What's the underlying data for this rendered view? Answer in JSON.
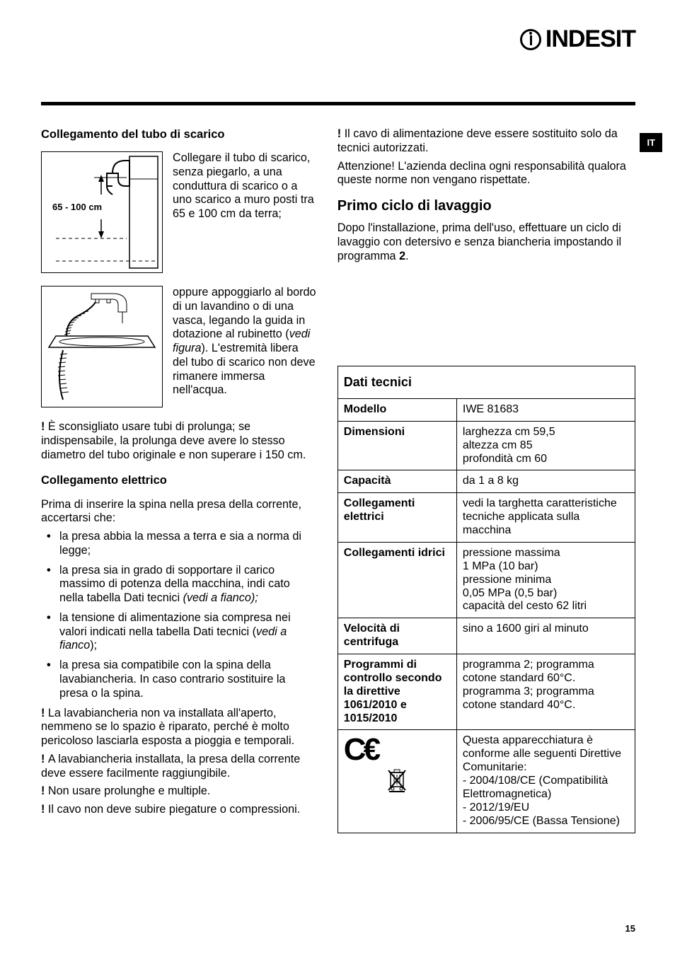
{
  "brand": "INDESIT",
  "lang_tab": "IT",
  "page_number": "15",
  "left": {
    "h1": "Collegamento del tubo di scarico",
    "fig1_label": "65 - 100 cm",
    "fig1_text": "Collegare il tubo di scarico, senza piegarlo, a una conduttura di scarico o a uno scarico a muro posti tra 65 e 100 cm da terra;",
    "fig2_text_a": "oppure appoggiarlo al bordo di un lavandino o di una vasca, legando la guida in dotazione al rubinetto (",
    "fig2_text_em": "vedi figura",
    "fig2_text_b": "). L'estremità libera del tubo di scarico non deve rimanere immersa nell'acqua.",
    "warn1": "È sconsigliato usare tubi di prolunga; se indispensabile, la prolunga deve avere lo stesso diametro del tubo originale e non superare i 150 cm.",
    "h2": "Collegamento elettrico",
    "p2": "Prima di inserire la spina nella presa della corrente, accertarsi che:",
    "bullets": [
      "la presa abbia la messa a terra e sia a norma di legge;",
      "la presa sia in grado di sopportare il carico massimo di potenza della macchina, indi cato nella tabella Dati tecnici",
      "la tensione di alimentazione sia compresa nei valori indicati nella tabella Dati tecnici (",
      "la presa sia compatibile con la spina della lavabiancheria. In caso contrario sostituire la presa o la spina."
    ],
    "bullet2_em": " (vedi a fianco);",
    "bullet3_em": "vedi a fianco",
    "bullet3_suffix": ");",
    "warn2": "La lavabiancheria non va installata all'aperto, nemmeno se lo spazio è riparato, perché è molto pericoloso lasciarla esposta a pioggia e temporali.",
    "warn3": "A lavabiancheria installata, la presa della corrente deve essere facilmente raggiungibile.",
    "warn4": "Non usare prolunghe e multiple.",
    "warn5": "Il cavo non deve subire piegature o compressioni."
  },
  "right": {
    "warn1": "Il cavo di alimentazione deve essere sostituito solo da tecnici autorizzati.",
    "p1": "Attenzione! L'azienda declina ogni responsabilità qualora queste norme non vengano rispettate.",
    "h1": "Primo ciclo di lavaggio",
    "p2a": "Dopo l'installazione, prima dell'uso, effettuare un ciclo di lavaggio con detersivo e senza biancheria impostando il programma ",
    "p2b": "2",
    "p2c": ".",
    "table_header": "Dati tecnici",
    "rows": [
      {
        "k": "Modello",
        "v": "IWE 81683"
      },
      {
        "k": "Dimensioni",
        "v": "larghezza cm 59,5\naltezza cm 85\nprofondità cm 60"
      },
      {
        "k": "Capacità",
        "v": "da 1 a 8 kg"
      },
      {
        "k": "Collegamenti elettrici",
        "v": "vedi la targhetta caratteristiche tecniche applicata sulla macchina"
      },
      {
        "k": "Collegamenti idrici",
        "v": "pressione massima\n1 MPa (10 bar)\npressione minima\n0,05 MPa (0,5 bar)\ncapacità del cesto 62 litri"
      },
      {
        "k": "Velocità di centrifuga",
        "v": "sino a 1600 giri al minuto"
      },
      {
        "k": "Programmi di controllo secondo la direttive 1061/2010 e 1015/2010",
        "v": "programma 2; programma cotone standard 60°C.\nprogramma 3; programma cotone standard 40°C."
      }
    ],
    "ce_text": "Questa apparecchiatura è conforme alle seguenti Direttive Comunitarie:\n- 2004/108/CE (Compatibilità Elettromagnetica)\n- 2012/19/EU\n- 2006/95/CE (Bassa Tensione)"
  }
}
